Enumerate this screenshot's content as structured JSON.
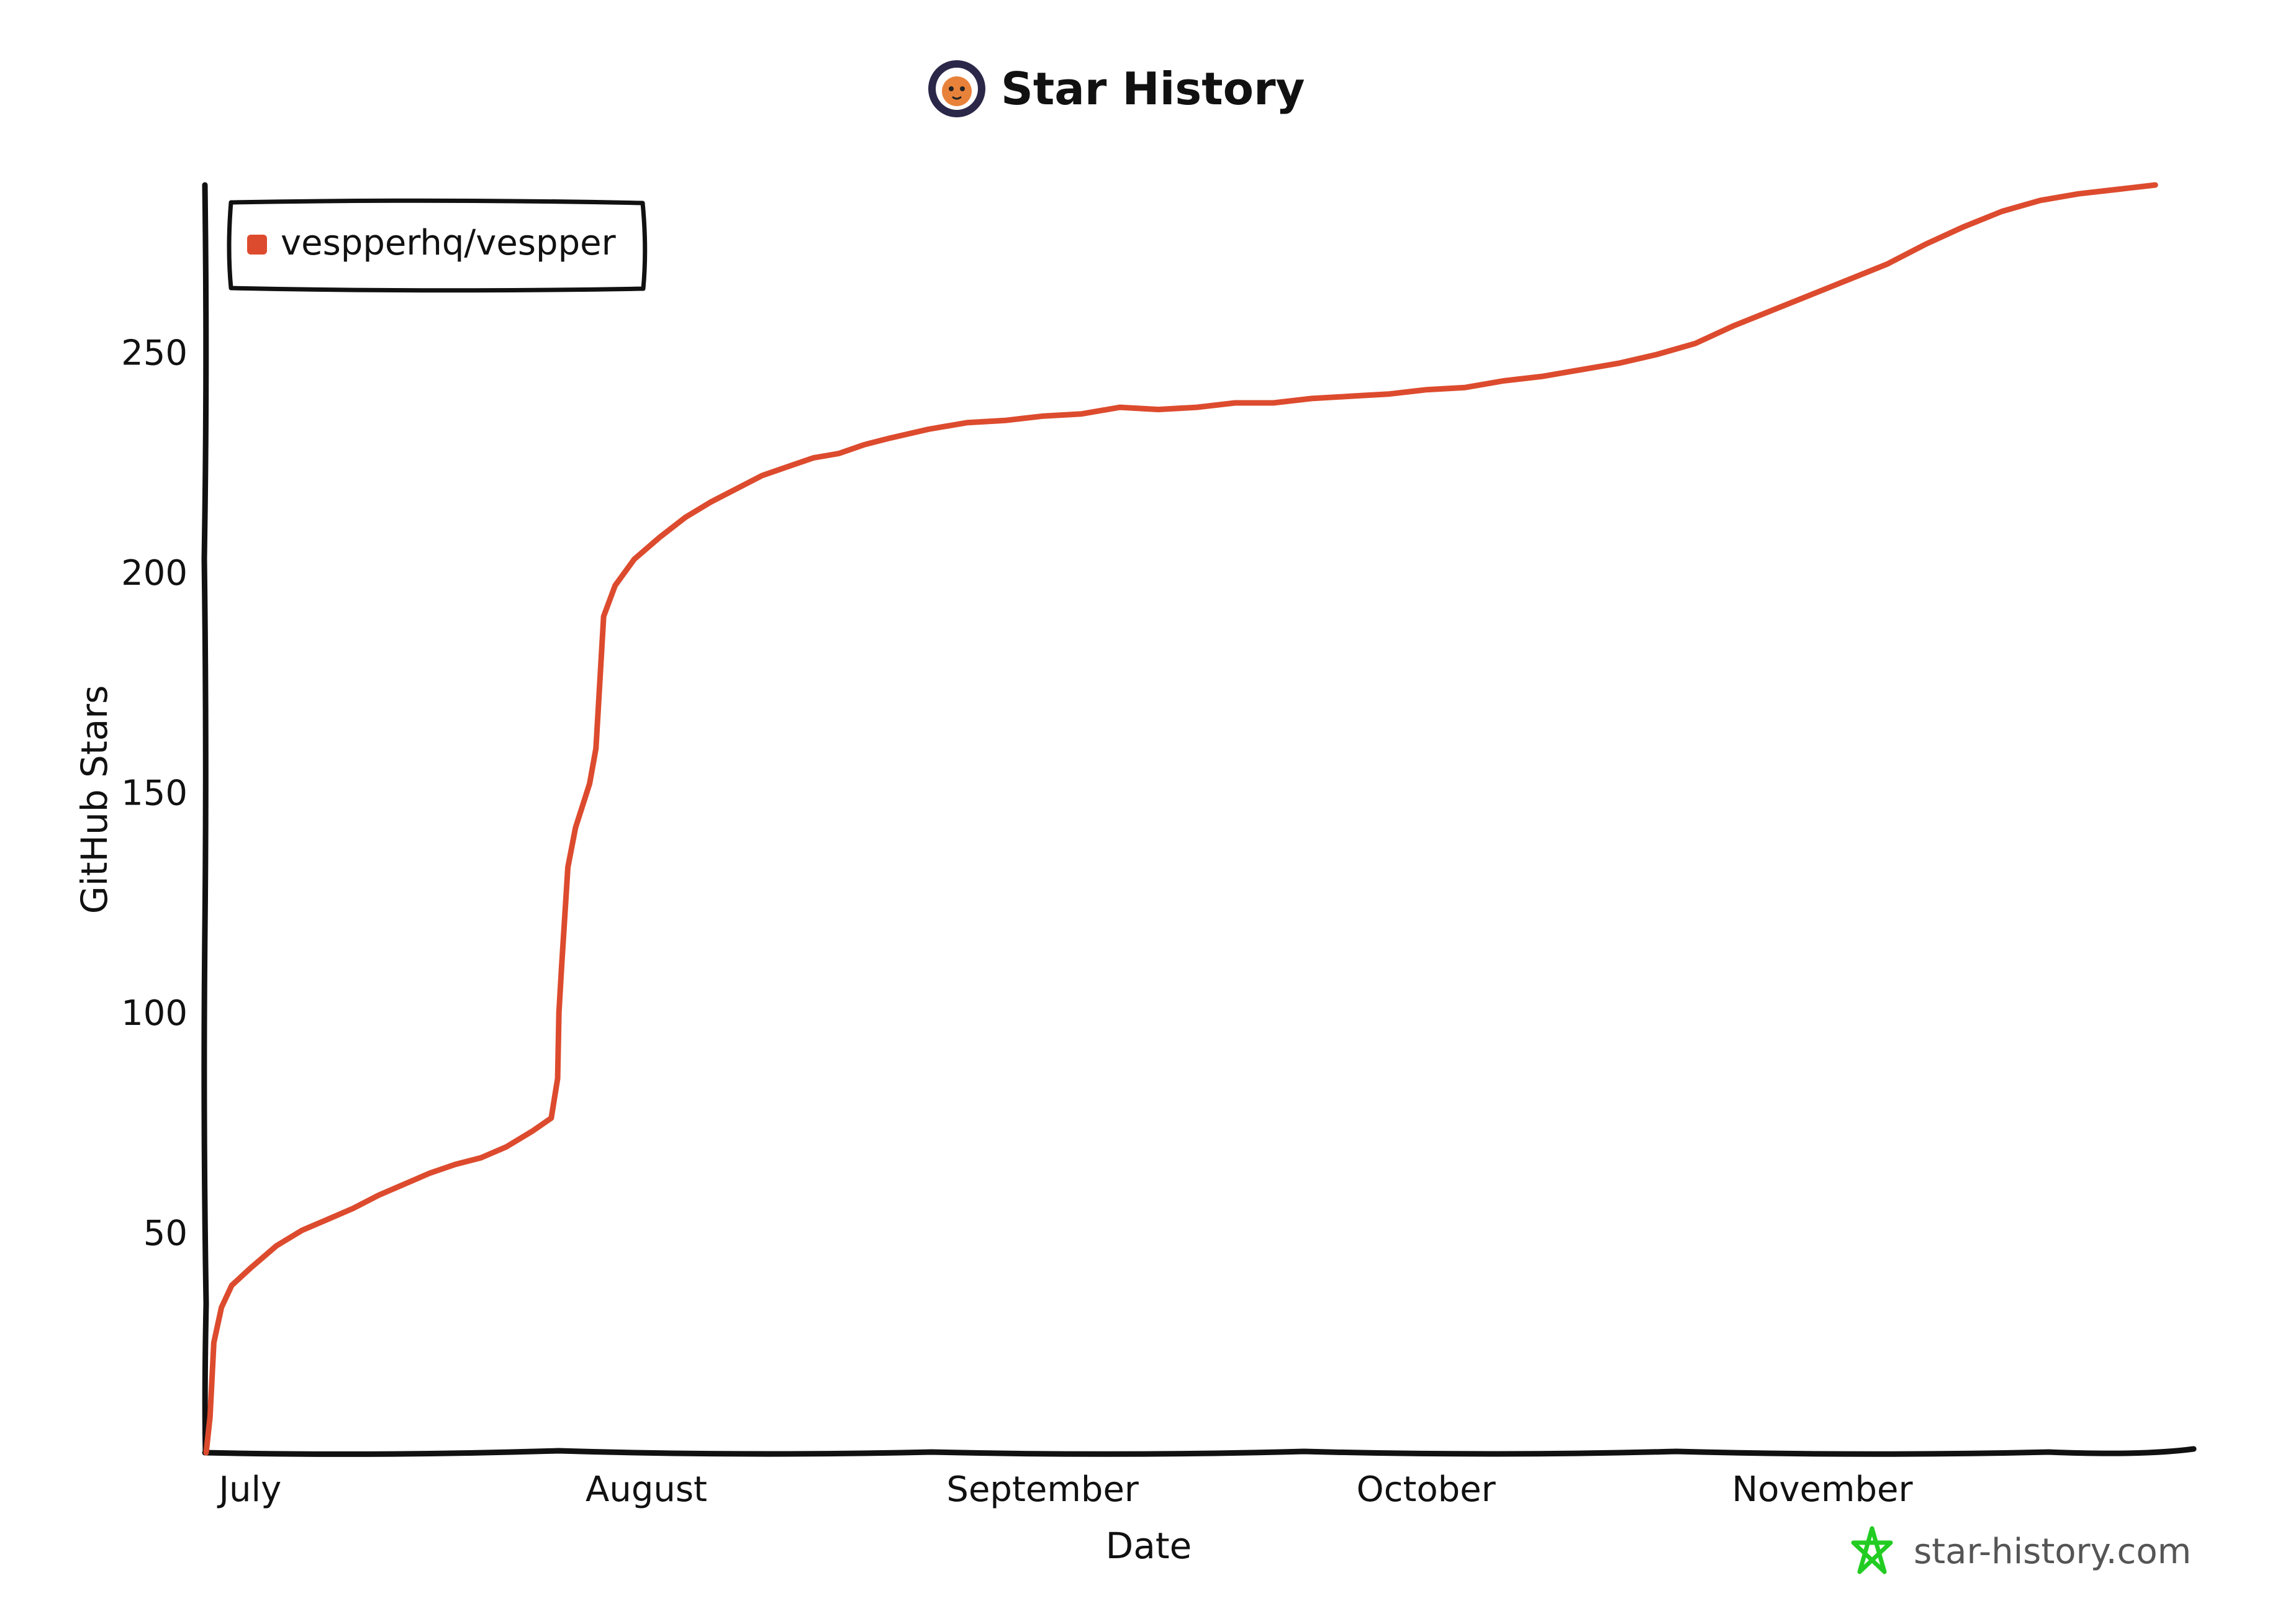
{
  "header": {
    "title": "Star History",
    "logo_icon": "star-history-logo-icon"
  },
  "watermark": {
    "text": "star-history.com",
    "icon": "star-outline-icon",
    "icon_color": "#22cc22"
  },
  "colors": {
    "series": "#dd4b2e",
    "axis": "#111111"
  },
  "chart_data": {
    "type": "line",
    "title": "Star History",
    "xlabel": "Date",
    "ylabel": "GitHub Stars",
    "x_unit": "days since start of July",
    "x_ticks": [
      {
        "label": "July",
        "x": 0
      },
      {
        "label": "August",
        "x": 31
      },
      {
        "label": "September",
        "x": 62
      },
      {
        "label": "October",
        "x": 92
      },
      {
        "label": "November",
        "x": 123
      }
    ],
    "y_ticks": [
      50,
      100,
      150,
      200,
      250
    ],
    "xlim": [
      -1.5,
      154
    ],
    "ylim": [
      0,
      288
    ],
    "grid": false,
    "legend_position": "top-left",
    "series": [
      {
        "name": "vespperhq/vespper",
        "color": "#dd4b2e",
        "points": [
          [
            -1.5,
            0
          ],
          [
            -1.2,
            8
          ],
          [
            -0.9,
            25
          ],
          [
            -0.3,
            33
          ],
          [
            0.5,
            38
          ],
          [
            2,
            42
          ],
          [
            4,
            47
          ],
          [
            6,
            50.5
          ],
          [
            8,
            53
          ],
          [
            10,
            55.5
          ],
          [
            12,
            58.5
          ],
          [
            14,
            61
          ],
          [
            16,
            63.5
          ],
          [
            18,
            65.5
          ],
          [
            20,
            67
          ],
          [
            22,
            69.5
          ],
          [
            24,
            73
          ],
          [
            25.5,
            76
          ],
          [
            26,
            85
          ],
          [
            26.1,
            100
          ],
          [
            26.3,
            110
          ],
          [
            26.8,
            133
          ],
          [
            27.4,
            142
          ],
          [
            28.5,
            152
          ],
          [
            29,
            160
          ],
          [
            29.6,
            190
          ],
          [
            30.5,
            197
          ],
          [
            32,
            203
          ],
          [
            34,
            208
          ],
          [
            36,
            212.5
          ],
          [
            38,
            216
          ],
          [
            40,
            219
          ],
          [
            42,
            222
          ],
          [
            44,
            224
          ],
          [
            46,
            226
          ],
          [
            48,
            227
          ],
          [
            50,
            229
          ],
          [
            52,
            230.5
          ],
          [
            55,
            232.5
          ],
          [
            58,
            234
          ],
          [
            61,
            234.5
          ],
          [
            64,
            235.5
          ],
          [
            67,
            236
          ],
          [
            70,
            237.5
          ],
          [
            73,
            237
          ],
          [
            76,
            237.5
          ],
          [
            79,
            238.5
          ],
          [
            82,
            238.5
          ],
          [
            85,
            239.5
          ],
          [
            88,
            240
          ],
          [
            91,
            240.5
          ],
          [
            94,
            241.5
          ],
          [
            97,
            242
          ],
          [
            100,
            243.5
          ],
          [
            103,
            244.5
          ],
          [
            106,
            246
          ],
          [
            109,
            247.5
          ],
          [
            112,
            249.5
          ],
          [
            115,
            252
          ],
          [
            118,
            256
          ],
          [
            121,
            259.5
          ],
          [
            124,
            263
          ],
          [
            127,
            266.5
          ],
          [
            130,
            270
          ],
          [
            133,
            274.5
          ],
          [
            136,
            278.5
          ],
          [
            139,
            282
          ],
          [
            142,
            284.5
          ],
          [
            145,
            286
          ],
          [
            148,
            287
          ],
          [
            151,
            288
          ]
        ]
      }
    ]
  }
}
